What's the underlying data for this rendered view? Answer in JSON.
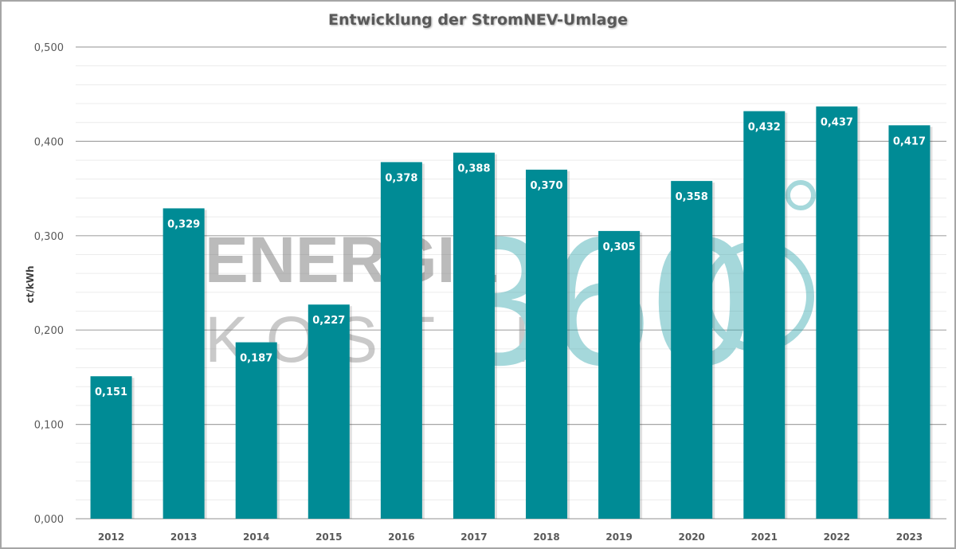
{
  "chart_data": {
    "type": "bar",
    "title": "Entwicklung der StromNEV-Umlage",
    "xlabel": "",
    "ylabel": "ct/kWh",
    "ylim": [
      0,
      0.5
    ],
    "y_ticks": [
      "0,000",
      "0,100",
      "0,200",
      "0,300",
      "0,400",
      "0,500"
    ],
    "grid": "major 0.1, minor 0.02",
    "categories": [
      "2012",
      "2013",
      "2014",
      "2015",
      "2016",
      "2017",
      "2018",
      "2019",
      "2020",
      "2021",
      "2022",
      "2023"
    ],
    "values": [
      0.151,
      0.329,
      0.187,
      0.227,
      0.378,
      0.388,
      0.37,
      0.305,
      0.358,
      0.432,
      0.437,
      0.417
    ],
    "data_labels": [
      "0,151",
      "0,329",
      "0,187",
      "0,227",
      "0,378",
      "0,388",
      "0,370",
      "0,305",
      "0,358",
      "0,432",
      "0,437",
      "0,417"
    ],
    "bar_color": "#008b95",
    "watermark": "ENERGIE KOSTEN 360°"
  }
}
